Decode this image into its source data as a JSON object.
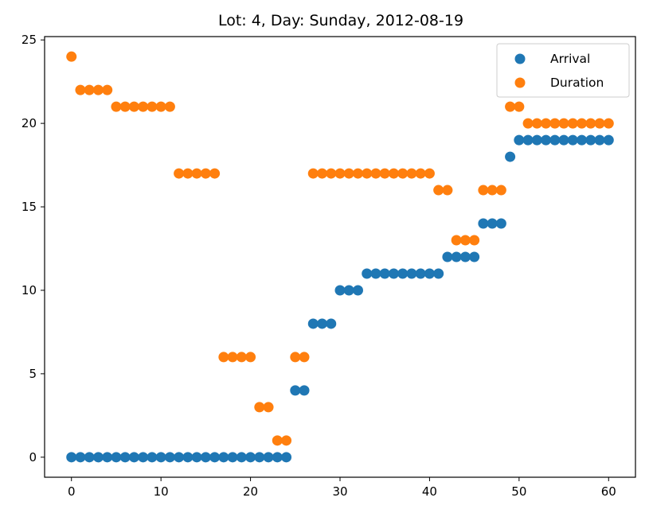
{
  "chart_data": {
    "type": "scatter",
    "title": "Lot: 4, Day: Sunday, 2012-08-19",
    "xlabel": "",
    "ylabel": "",
    "xlim": [
      -3,
      63
    ],
    "ylim": [
      -1.2,
      25.2
    ],
    "xticks": [
      0,
      10,
      20,
      30,
      40,
      50,
      60
    ],
    "yticks": [
      0,
      5,
      10,
      15,
      20,
      25
    ],
    "grid": false,
    "legend_position": "top-right",
    "series": [
      {
        "name": "Arrival",
        "color": "#1f77b4",
        "x": [
          0,
          1,
          2,
          3,
          4,
          5,
          6,
          7,
          8,
          9,
          10,
          11,
          12,
          13,
          14,
          15,
          16,
          17,
          18,
          19,
          20,
          21,
          22,
          23,
          24,
          25,
          26,
          27,
          28,
          29,
          30,
          31,
          32,
          33,
          34,
          35,
          36,
          37,
          38,
          39,
          40,
          41,
          42,
          43,
          44,
          45,
          46,
          47,
          48,
          49,
          50,
          51,
          52,
          53,
          54,
          55,
          56,
          57,
          58,
          59,
          60
        ],
        "y": [
          0,
          0,
          0,
          0,
          0,
          0,
          0,
          0,
          0,
          0,
          0,
          0,
          0,
          0,
          0,
          0,
          0,
          0,
          0,
          0,
          0,
          0,
          0,
          0,
          0,
          4,
          4,
          8,
          8,
          8,
          10,
          10,
          10,
          11,
          11,
          11,
          11,
          11,
          11,
          11,
          11,
          11,
          12,
          12,
          12,
          12,
          14,
          14,
          14,
          18,
          19,
          19,
          19,
          19,
          19,
          19,
          19,
          19,
          19,
          19,
          19
        ]
      },
      {
        "name": "Duration",
        "color": "#ff7f0e",
        "x": [
          0,
          1,
          2,
          3,
          4,
          5,
          6,
          7,
          8,
          9,
          10,
          11,
          12,
          13,
          14,
          15,
          16,
          17,
          18,
          19,
          20,
          21,
          22,
          23,
          24,
          25,
          26,
          27,
          28,
          29,
          30,
          31,
          32,
          33,
          34,
          35,
          36,
          37,
          38,
          39,
          40,
          41,
          42,
          43,
          44,
          45,
          46,
          47,
          48,
          49,
          50,
          51,
          52,
          53,
          54,
          55,
          56,
          57,
          58,
          59,
          60
        ],
        "y": [
          24,
          22,
          22,
          22,
          22,
          21,
          21,
          21,
          21,
          21,
          21,
          21,
          17,
          17,
          17,
          17,
          17,
          6,
          6,
          6,
          6,
          3,
          3,
          1,
          1,
          6,
          6,
          17,
          17,
          17,
          17,
          17,
          17,
          17,
          17,
          17,
          17,
          17,
          17,
          17,
          17,
          16,
          16,
          13,
          13,
          13,
          16,
          16,
          16,
          21,
          21,
          20,
          20,
          20,
          20,
          20,
          20,
          20,
          20,
          20,
          20
        ]
      }
    ]
  }
}
